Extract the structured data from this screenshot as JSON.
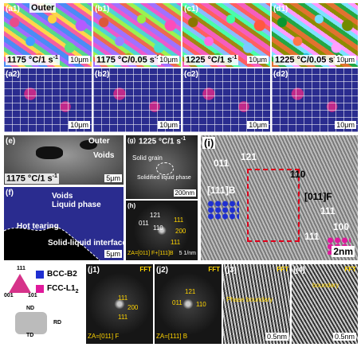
{
  "top_row": [
    {
      "id": "(a1)",
      "cond": "1175 °C/1 s",
      "sup": "-1",
      "scale": "10μm"
    },
    {
      "id": "(b1)",
      "cond": "1175 °C/0.05 s",
      "sup": "-1",
      "scale": "10μm"
    },
    {
      "id": "(c1)",
      "cond": "1225 °C/1 s",
      "sup": "-1",
      "scale": "10μm"
    },
    {
      "id": "(d1)",
      "cond": "1225 °C/0.05 s",
      "sup": "-1",
      "scale": "10μm"
    }
  ],
  "outer": "Outer",
  "second_row": [
    {
      "id": "(a2)",
      "scale": "10μm"
    },
    {
      "id": "(b2)",
      "scale": "10μm"
    },
    {
      "id": "(c2)",
      "scale": "10μm"
    },
    {
      "id": "(d2)",
      "scale": "10μm"
    }
  ],
  "e": {
    "id": "(e)",
    "outer": "Outer",
    "voids": "Voids",
    "cond": "1175 °C/1 s",
    "sup": "-1",
    "scale": "5μm"
  },
  "f": {
    "id": "(f)",
    "voids": "Voids",
    "liquid": "Liquid phase",
    "hot": "Hot tearing",
    "interface": "Solid-liquid interface",
    "scale": "5μm"
  },
  "g": {
    "id": "(g)",
    "cond": "1225 °C/1 s",
    "sup": "-1",
    "grain": "Solid grain",
    "liquid": "Solidified liquid phase",
    "scale": "200nm"
  },
  "h": {
    "id": "(h)",
    "spots": [
      "121",
      "011",
      "110",
      "111",
      "200",
      "111"
    ],
    "za": "ZA=[011] F+[111]B",
    "scale": "5 1/nm"
  },
  "i": {
    "id": "(i)",
    "labels": [
      "011",
      "121",
      "110",
      "[111]B",
      "[011]F",
      "111",
      "100",
      "111"
    ],
    "scale": "2nm"
  },
  "legend": {
    "bcc": "BCC-B2",
    "fcc": "FCC-L1",
    "fcc_sub": "2",
    "colors": {
      "bcc": "#1f2fd1",
      "fcc": "#e0199b"
    },
    "ipf": [
      "111",
      "001",
      "101"
    ],
    "axes": [
      "ND",
      "RD",
      "TD"
    ]
  },
  "j": [
    {
      "id": "(j1)",
      "fft": "FFT",
      "za": "ZA=[011] F",
      "spots": [
        "111",
        "200",
        "111"
      ]
    },
    {
      "id": "(j2)",
      "fft": "FFT",
      "za": "ZA=[111] B",
      "spots": [
        "121",
        "011",
        "110"
      ]
    },
    {
      "id": "(j3)",
      "fft": "FFT",
      "text": "Phase boundary",
      "scale": "0.5nm"
    },
    {
      "id": "(j4)",
      "fft": "FFT",
      "text": "boundary",
      "scale": "0.5nm"
    }
  ]
}
